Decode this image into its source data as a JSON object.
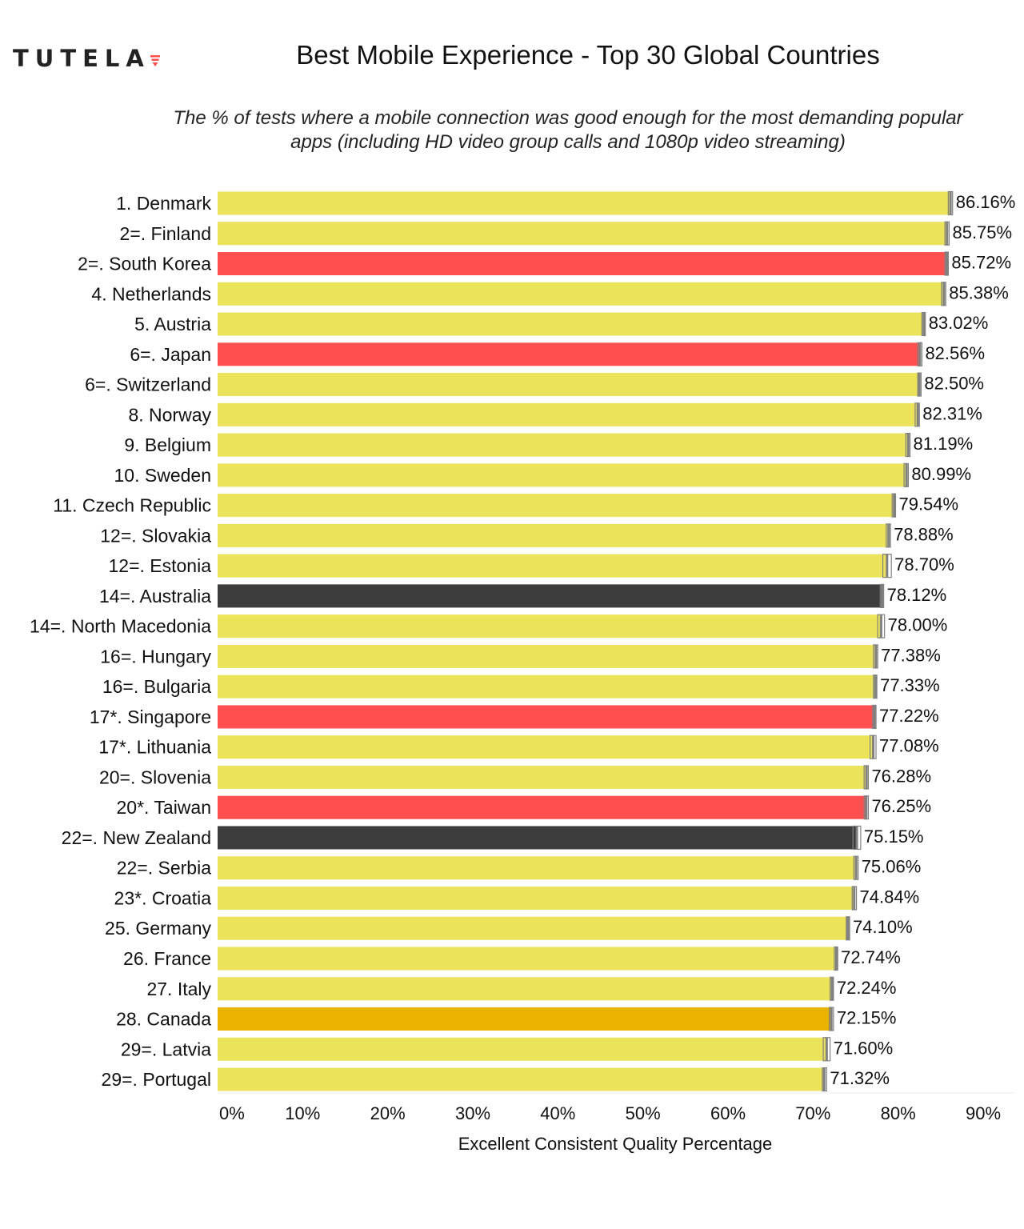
{
  "brand": {
    "name": "TUTELA",
    "accent": "#ff4f4f"
  },
  "header": {
    "title": "Best Mobile Experience - Top 30 Global Countries",
    "subtitle_line1": "The % of tests where a mobile connection was good enough for the most demanding popular",
    "subtitle_line2": "apps (including HD video group calls and 1080p video streaming)"
  },
  "colors": {
    "yellow": "#ebe35a",
    "red": "#ff4f4f",
    "dark": "#3d3d3d",
    "gold": "#e9b300",
    "errorbar": "#808080"
  },
  "chart_data": {
    "type": "bar",
    "orientation": "horizontal",
    "title": "Best Mobile Experience - Top 30 Global Countries",
    "xlabel": "Excellent Consistent Quality Percentage",
    "ylabel": "",
    "xlim": [
      0,
      90
    ],
    "x_ticks": [
      0,
      10,
      20,
      30,
      40,
      50,
      60,
      70,
      80,
      90
    ],
    "x_tick_labels": [
      "0%",
      "10%",
      "20%",
      "30%",
      "40%",
      "50%",
      "60%",
      "70%",
      "80%",
      "90%"
    ],
    "grid": false,
    "categories": [
      "1.  Denmark",
      "2=.  Finland",
      "2=.  South Korea",
      "4.  Netherlands",
      "5.  Austria",
      "6=.  Japan",
      "6=.  Switzerland",
      "8.  Norway",
      "9.  Belgium",
      "10.  Sweden",
      "11.  Czech Republic",
      "12=.  Slovakia",
      "12=.  Estonia",
      "14=.  Australia",
      "14=.  North Macedonia",
      "16=.  Hungary",
      "16=.  Bulgaria",
      "17*.  Singapore",
      "17*.  Lithuania",
      "20=.  Slovenia",
      "20*.  Taiwan",
      "22=.  New Zealand",
      "22=.  Serbia",
      "23*.  Croatia",
      "25.  Germany",
      "26.  France",
      "27.  Italy",
      "28.  Canada",
      "29=.  Latvia",
      "29=.  Portugal"
    ],
    "values": [
      86.16,
      85.75,
      85.72,
      85.38,
      83.02,
      82.56,
      82.5,
      82.31,
      81.19,
      80.99,
      79.54,
      78.88,
      78.7,
      78.12,
      78.0,
      77.38,
      77.33,
      77.22,
      77.08,
      76.28,
      76.25,
      75.15,
      75.06,
      74.84,
      74.1,
      72.74,
      72.24,
      72.15,
      71.6,
      71.32
    ],
    "value_labels": [
      "86.16%",
      "85.75%",
      "85.72%",
      "85.38%",
      "83.02%",
      "82.56%",
      "82.50%",
      "82.31%",
      "81.19%",
      "80.99%",
      "79.54%",
      "78.88%",
      "78.70%",
      "78.12%",
      "78.00%",
      "77.38%",
      "77.33%",
      "77.22%",
      "77.08%",
      "76.28%",
      "76.25%",
      "75.15%",
      "75.06%",
      "74.84%",
      "74.10%",
      "72.74%",
      "72.24%",
      "72.15%",
      "71.60%",
      "71.32%"
    ],
    "bar_colors": [
      "yellow",
      "yellow",
      "red",
      "yellow",
      "yellow",
      "red",
      "yellow",
      "yellow",
      "yellow",
      "yellow",
      "yellow",
      "yellow",
      "yellow",
      "dark",
      "yellow",
      "yellow",
      "yellow",
      "red",
      "yellow",
      "yellow",
      "red",
      "dark",
      "yellow",
      "yellow",
      "yellow",
      "yellow",
      "yellow",
      "gold",
      "yellow",
      "yellow"
    ],
    "error_bars": [
      [
        85.9,
        86.4
      ],
      [
        85.5,
        86.0
      ],
      [
        85.5,
        85.9
      ],
      [
        85.1,
        85.6
      ],
      [
        82.8,
        83.2
      ],
      [
        82.3,
        82.8
      ],
      [
        82.3,
        82.7
      ],
      [
        82.0,
        82.5
      ],
      [
        80.9,
        81.4
      ],
      [
        80.7,
        81.2
      ],
      [
        79.3,
        79.7
      ],
      [
        78.6,
        79.1
      ],
      [
        78.2,
        79.2
      ],
      [
        77.9,
        78.3
      ],
      [
        77.6,
        78.4
      ],
      [
        77.1,
        77.6
      ],
      [
        77.1,
        77.5
      ],
      [
        77.0,
        77.4
      ],
      [
        76.7,
        77.4
      ],
      [
        76.0,
        76.5
      ],
      [
        76.0,
        76.5
      ],
      [
        74.7,
        75.6
      ],
      [
        74.8,
        75.3
      ],
      [
        74.6,
        75.1
      ],
      [
        73.9,
        74.3
      ],
      [
        72.5,
        72.9
      ],
      [
        72.0,
        72.4
      ],
      [
        71.9,
        72.4
      ],
      [
        71.2,
        72.0
      ],
      [
        71.1,
        71.6
      ]
    ]
  }
}
